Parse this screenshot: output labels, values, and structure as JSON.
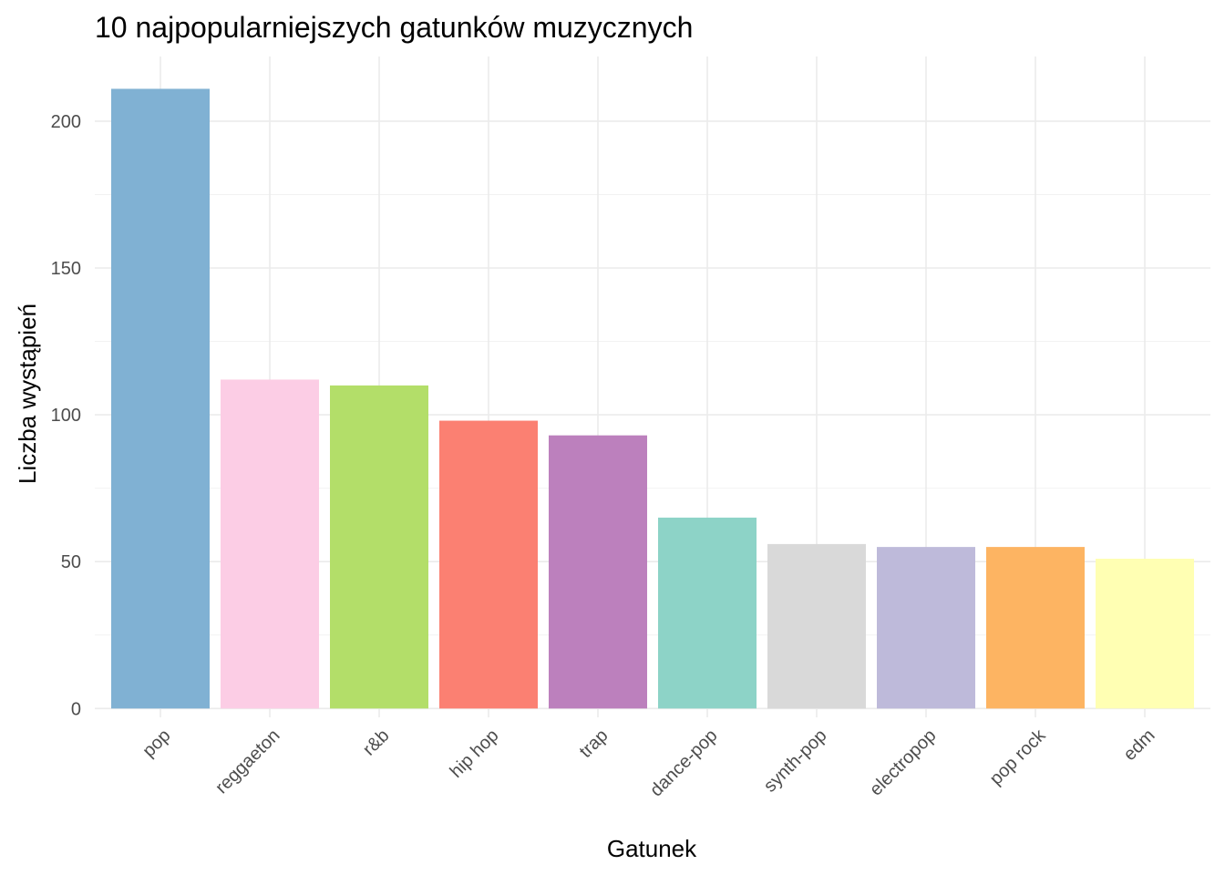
{
  "chart_data": {
    "type": "bar",
    "title": "10 najpopularniejszych gatunków muzycznych",
    "xlabel": "Gatunek",
    "ylabel": "Liczba wystąpień",
    "categories": [
      "pop",
      "reggaeton",
      "r&b",
      "hip hop",
      "trap",
      "dance-pop",
      "synth-pop",
      "electropop",
      "pop rock",
      "edm"
    ],
    "values": [
      211,
      112,
      110,
      98,
      93,
      65,
      56,
      55,
      55,
      51
    ],
    "colors": [
      "#80B1D3",
      "#FCCDE5",
      "#B3DE69",
      "#FB8072",
      "#BC80BD",
      "#8DD3C7",
      "#D9D9D9",
      "#BEBADA",
      "#FDB462",
      "#FFFFB3"
    ],
    "yticks": [
      0,
      50,
      100,
      150,
      200
    ],
    "ylim": [
      -3,
      222
    ],
    "grid": true,
    "legend": "none"
  }
}
